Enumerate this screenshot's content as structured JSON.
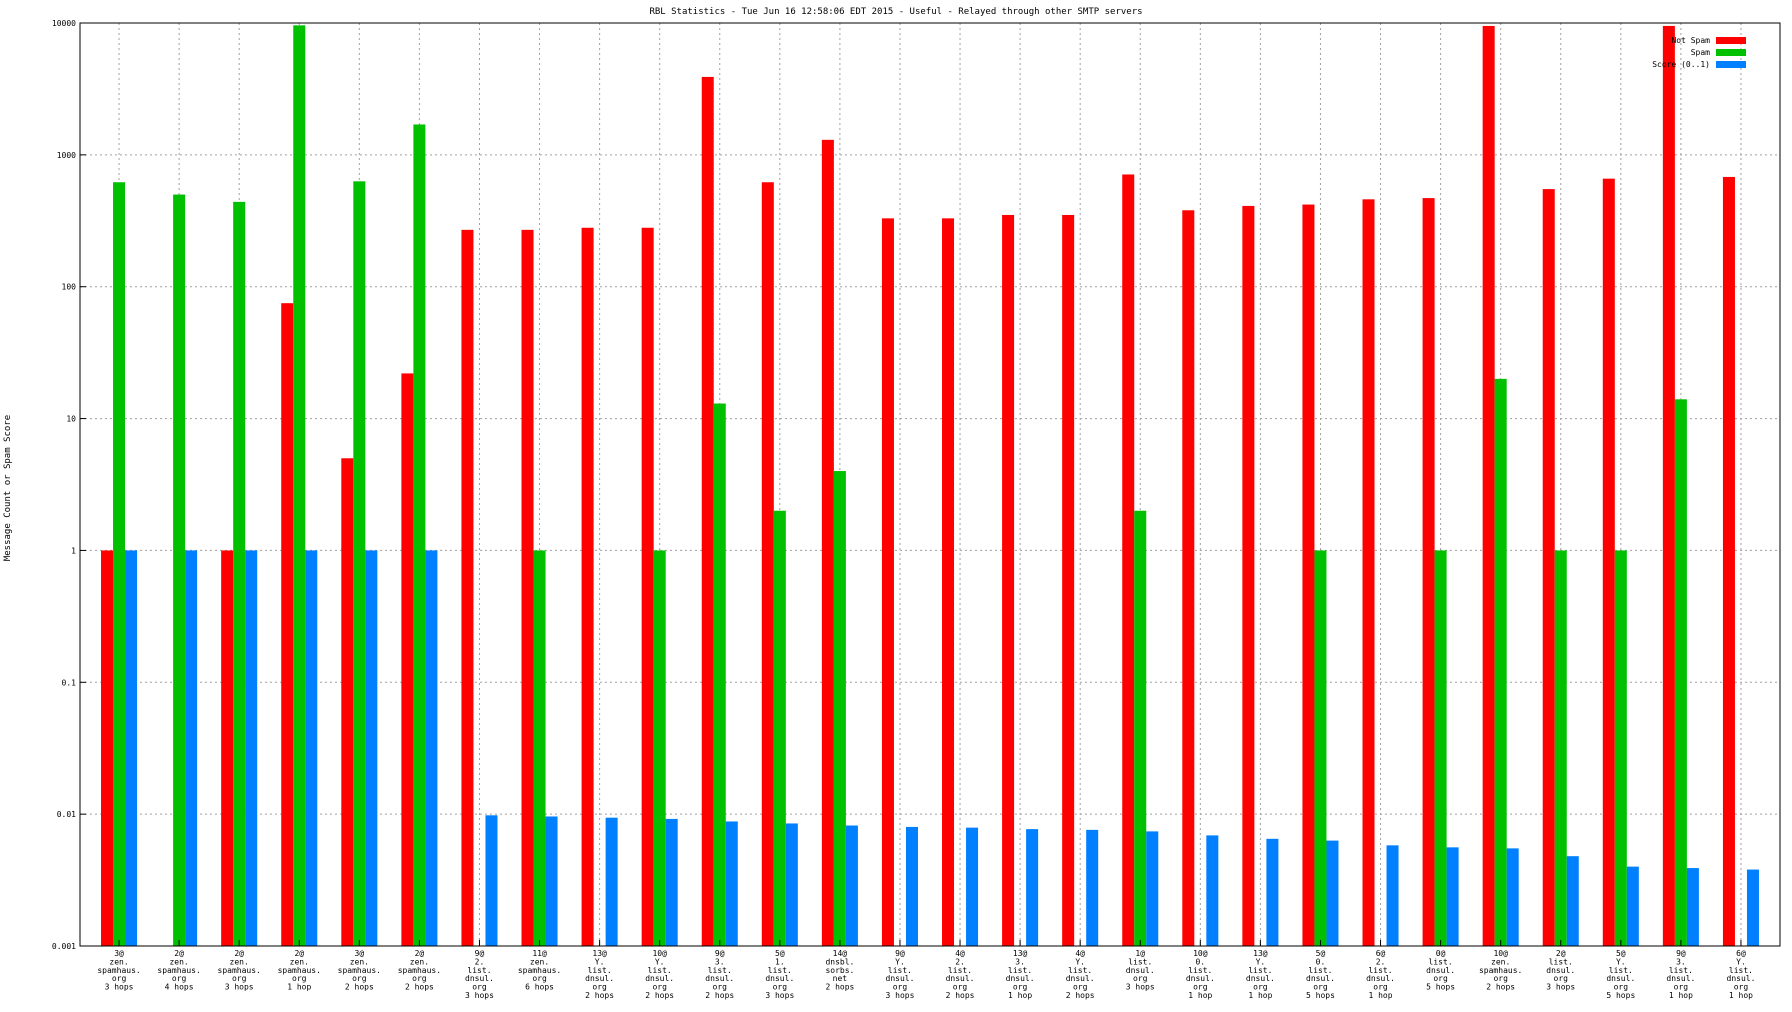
{
  "chart_data": {
    "type": "bar",
    "title": "RBL Statistics - Tue Jun 16 12:58:06 EDT 2015 - Useful - Relayed through other SMTP servers",
    "xlabel": "",
    "ylabel": "Message Count or Spam Score",
    "yscale": "log",
    "ylim": [
      0.001,
      10000
    ],
    "yticks": [
      "0.001",
      "0.01",
      "0.1",
      "1",
      "10",
      "100",
      "1000",
      "10000"
    ],
    "grid": true,
    "legend_position": "top-right",
    "categories": [
      "3@\nzen.\nspamhaus.\norg\n3 hops",
      "2@\nzen.\nspamhaus.\norg\n4 hops",
      "2@\nzen.\nspamhaus.\norg\n3 hops",
      "2@\nzen.\nspamhaus.\norg\n1 hop",
      "3@\nzen.\nspamhaus.\norg\n2 hops",
      "2@\nzen.\nspamhaus.\norg\n2 hops",
      "9@\n2.\nlist.\ndnsul.\norg\n3 hops",
      "11@\nzen.\nspamhaus.\norg\n6 hops",
      "13@\nY.\nlist.\ndnsul.\norg\n2 hops",
      "10@\nY.\nlist.\ndnsul.\norg\n2 hops",
      "9@\n3.\nlist.\ndnsul.\norg\n2 hops",
      "5@\n1.\nlist.\ndnsul.\norg\n3 hops",
      "14@\ndnsbl.\nsorbs.\nnet\n2 hops",
      "9@\nY.\nlist.\ndnsul.\norg\n3 hops",
      "4@\n2.\nlist.\ndnsul.\norg\n2 hops",
      "13@\n3.\nlist.\ndnsul.\norg\n1 hop",
      "4@\nY.\nlist.\ndnsul.\norg\n2 hops",
      "1@\nlist.\ndnsul.\norg\n3 hops",
      "10@\n0.\nlist.\ndnsul.\norg\n1 hop",
      "13@\nY.\nlist.\ndnsul.\norg\n1 hop",
      "5@\n0.\nlist.\ndnsul.\norg\n5 hops",
      "6@\n2.\nlist.\ndnsul.\norg\n1 hop",
      "0@\nlist.\ndnsul.\norg\n5 hops",
      "10@\nzen.\nspamhaus.\norg\n2 hops",
      "2@\nlist.\ndnsul.\norg\n3 hops",
      "5@\nY.\nlist.\ndnsul.\norg\n5 hops",
      "9@\n3.\nlist.\ndnsul.\norg\n1 hop",
      "6@\nY.\nlist.\ndnsul.\norg\n1 hop"
    ],
    "series": [
      {
        "name": "Not Spam",
        "color": "#ff0000",
        "values": [
          1,
          null,
          1,
          75,
          5,
          22,
          270,
          270,
          280,
          280,
          3900,
          620,
          1300,
          330,
          330,
          350,
          350,
          710,
          380,
          410,
          420,
          460,
          470,
          9500,
          550,
          660,
          9500,
          680
        ]
      },
      {
        "name": "Spam",
        "color": "#00c000",
        "values": [
          620,
          500,
          440,
          9600,
          630,
          1700,
          null,
          1,
          null,
          1,
          13,
          2,
          4,
          null,
          null,
          null,
          null,
          2,
          null,
          null,
          1,
          null,
          1,
          20,
          1,
          1,
          14,
          null
        ]
      },
      {
        "name": "Score (0..1)",
        "color": "#0080ff",
        "values": [
          1,
          1,
          1,
          1,
          1,
          1,
          0.0098,
          0.0096,
          0.0094,
          0.0092,
          0.0088,
          0.0085,
          0.0082,
          0.008,
          0.0079,
          0.0077,
          0.0076,
          0.0074,
          0.0069,
          0.0065,
          0.0063,
          0.0058,
          0.0056,
          0.0055,
          0.0048,
          0.004,
          0.0039,
          0.0038
        ]
      }
    ]
  }
}
